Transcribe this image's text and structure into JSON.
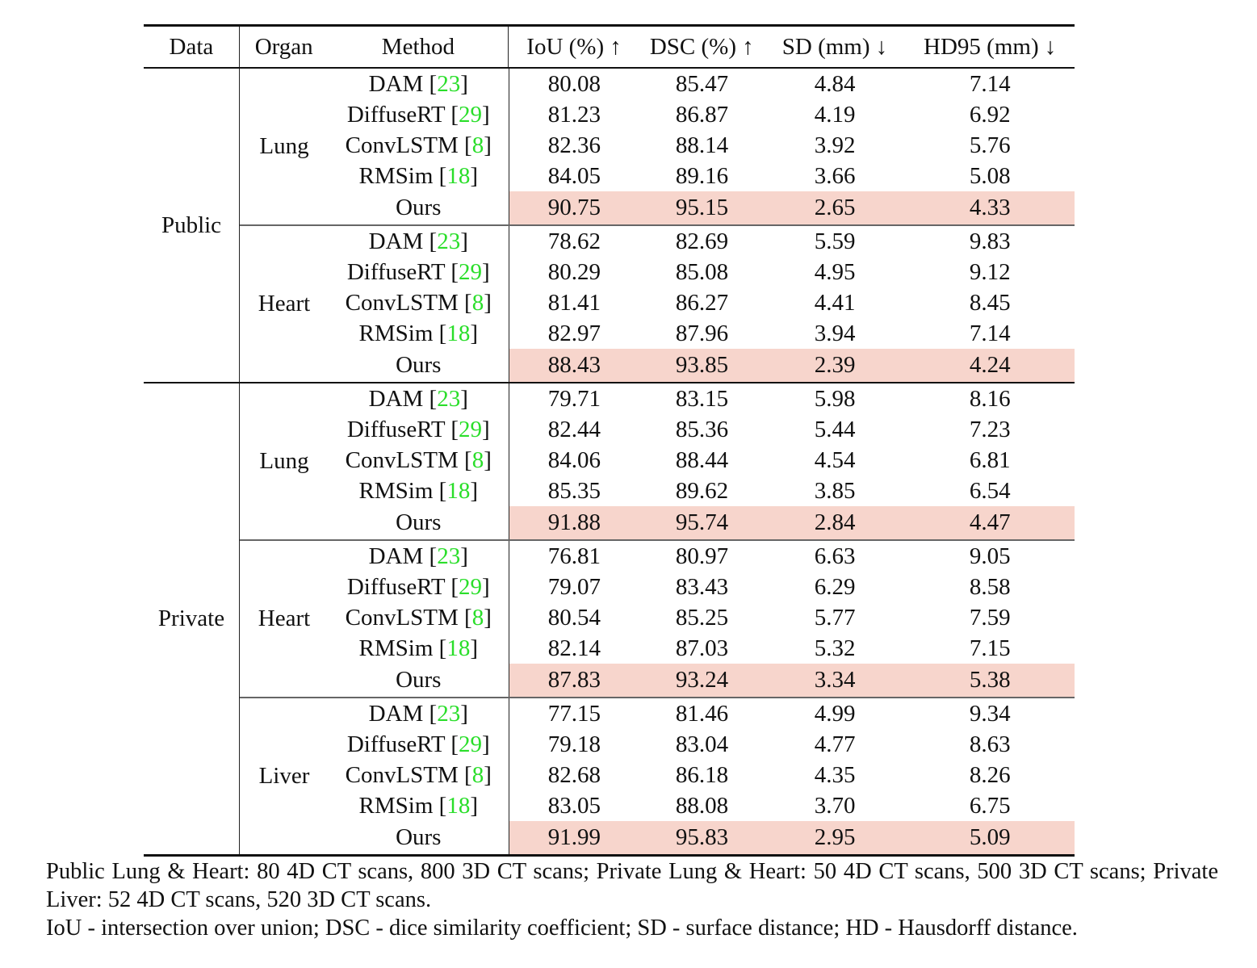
{
  "table": {
    "headers": [
      "Data",
      "Organ",
      "Method",
      "IoU (%) ↑",
      "DSC (%) ↑",
      "SD (mm) ↓",
      "HD95 (mm) ↓"
    ],
    "sections": [
      {
        "data": "Public",
        "organs": [
          {
            "organ": "Lung",
            "rows": [
              {
                "method": "DAM",
                "cite": "23",
                "values": [
                  "80.08",
                  "85.47",
                  "4.84",
                  "7.14"
                ],
                "highlight": false
              },
              {
                "method": "DiffuseRT",
                "cite": "29",
                "values": [
                  "81.23",
                  "86.87",
                  "4.19",
                  "6.92"
                ],
                "highlight": false
              },
              {
                "method": "ConvLSTM",
                "cite": "8",
                "values": [
                  "82.36",
                  "88.14",
                  "3.92",
                  "5.76"
                ],
                "highlight": false
              },
              {
                "method": "RMSim",
                "cite": "18",
                "values": [
                  "84.05",
                  "89.16",
                  "3.66",
                  "5.08"
                ],
                "highlight": false
              },
              {
                "method": "Ours",
                "cite": null,
                "values": [
                  "90.75",
                  "95.15",
                  "2.65",
                  "4.33"
                ],
                "highlight": true
              }
            ]
          },
          {
            "organ": "Heart",
            "rows": [
              {
                "method": "DAM",
                "cite": "23",
                "values": [
                  "78.62",
                  "82.69",
                  "5.59",
                  "9.83"
                ],
                "highlight": false
              },
              {
                "method": "DiffuseRT",
                "cite": "29",
                "values": [
                  "80.29",
                  "85.08",
                  "4.95",
                  "9.12"
                ],
                "highlight": false
              },
              {
                "method": "ConvLSTM",
                "cite": "8",
                "values": [
                  "81.41",
                  "86.27",
                  "4.41",
                  "8.45"
                ],
                "highlight": false
              },
              {
                "method": "RMSim",
                "cite": "18",
                "values": [
                  "82.97",
                  "87.96",
                  "3.94",
                  "7.14"
                ],
                "highlight": false
              },
              {
                "method": "Ours",
                "cite": null,
                "values": [
                  "88.43",
                  "93.85",
                  "2.39",
                  "4.24"
                ],
                "highlight": true
              }
            ]
          }
        ]
      },
      {
        "data": "Private",
        "organs": [
          {
            "organ": "Lung",
            "rows": [
              {
                "method": "DAM",
                "cite": "23",
                "values": [
                  "79.71",
                  "83.15",
                  "5.98",
                  "8.16"
                ],
                "highlight": false
              },
              {
                "method": "DiffuseRT",
                "cite": "29",
                "values": [
                  "82.44",
                  "85.36",
                  "5.44",
                  "7.23"
                ],
                "highlight": false
              },
              {
                "method": "ConvLSTM",
                "cite": "8",
                "values": [
                  "84.06",
                  "88.44",
                  "4.54",
                  "6.81"
                ],
                "highlight": false
              },
              {
                "method": "RMSim",
                "cite": "18",
                "values": [
                  "85.35",
                  "89.62",
                  "3.85",
                  "6.54"
                ],
                "highlight": false
              },
              {
                "method": "Ours",
                "cite": null,
                "values": [
                  "91.88",
                  "95.74",
                  "2.84",
                  "4.47"
                ],
                "highlight": true
              }
            ]
          },
          {
            "organ": "Heart",
            "rows": [
              {
                "method": "DAM",
                "cite": "23",
                "values": [
                  "76.81",
                  "80.97",
                  "6.63",
                  "9.05"
                ],
                "highlight": false
              },
              {
                "method": "DiffuseRT",
                "cite": "29",
                "values": [
                  "79.07",
                  "83.43",
                  "6.29",
                  "8.58"
                ],
                "highlight": false
              },
              {
                "method": "ConvLSTM",
                "cite": "8",
                "values": [
                  "80.54",
                  "85.25",
                  "5.77",
                  "7.59"
                ],
                "highlight": false
              },
              {
                "method": "RMSim",
                "cite": "18",
                "values": [
                  "82.14",
                  "87.03",
                  "5.32",
                  "7.15"
                ],
                "highlight": false
              },
              {
                "method": "Ours",
                "cite": null,
                "values": [
                  "87.83",
                  "93.24",
                  "3.34",
                  "5.38"
                ],
                "highlight": true
              }
            ]
          },
          {
            "organ": "Liver",
            "rows": [
              {
                "method": "DAM",
                "cite": "23",
                "values": [
                  "77.15",
                  "81.46",
                  "4.99",
                  "9.34"
                ],
                "highlight": false
              },
              {
                "method": "DiffuseRT",
                "cite": "29",
                "values": [
                  "79.18",
                  "83.04",
                  "4.77",
                  "8.63"
                ],
                "highlight": false
              },
              {
                "method": "ConvLSTM",
                "cite": "8",
                "values": [
                  "82.68",
                  "86.18",
                  "4.35",
                  "8.26"
                ],
                "highlight": false
              },
              {
                "method": "RMSim",
                "cite": "18",
                "values": [
                  "83.05",
                  "88.08",
                  "3.70",
                  "6.75"
                ],
                "highlight": false
              },
              {
                "method": "Ours",
                "cite": null,
                "values": [
                  "91.99",
                  "95.83",
                  "2.95",
                  "5.09"
                ],
                "highlight": true
              }
            ]
          }
        ]
      }
    ]
  },
  "footnotes": [
    "Public Lung & Heart: 80 4D CT scans, 800 3D CT scans; Private Lung & Heart: 50 4D CT scans, 500 3D CT scans; Private Liver: 52 4D CT scans, 520 3D CT scans.",
    "IoU - intersection over union; DSC - dice similarity coefficient; SD - surface distance; HD - Hausdorff distance."
  ],
  "colors": {
    "highlight_row": "#f7d5cc",
    "citation_green": "#2ade2a",
    "rule": "#111111"
  }
}
